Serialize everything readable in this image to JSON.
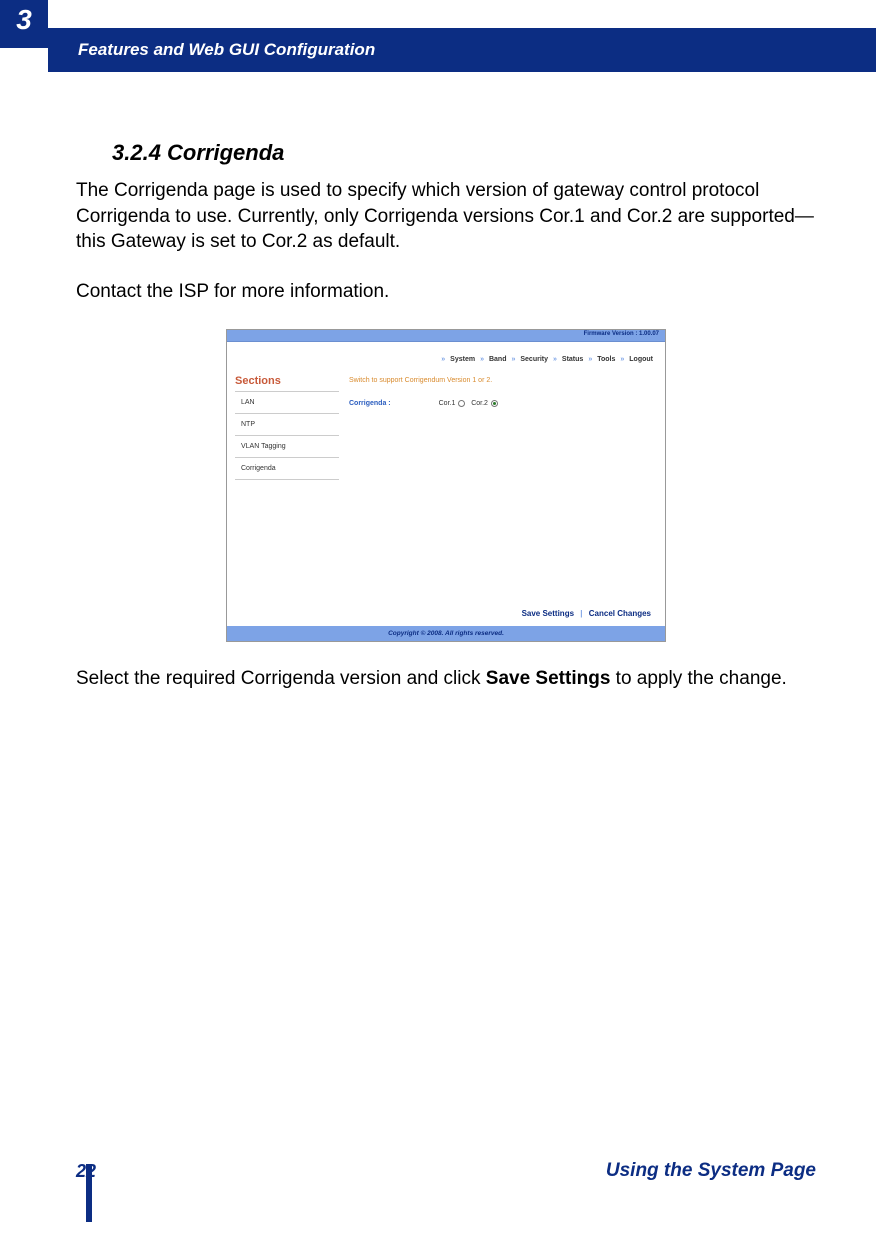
{
  "chapter_number": "3",
  "header_title": "Features and Web GUI Configuration",
  "section_heading": "3.2.4 Corrigenda",
  "para1": "The Corrigenda page is used to specify which version of gateway control proto­col Corrigenda to use. Currently, only Corrigenda versions Cor.1 and Cor.2 are supported—this Gateway is set to Cor.2 as default.",
  "para2": "Contact the ISP for more information.",
  "para3_pre": "Select the required Corrigenda version and click ",
  "para3_bold": "Save Settings",
  "para3_post": " to apply the change.",
  "screenshot": {
    "firmware": "Firmware Version : 1.00.07",
    "nav": [
      "System",
      "Band",
      "Security",
      "Status",
      "Tools",
      "Logout"
    ],
    "sections_title": "Sections",
    "sections": [
      "LAN",
      "NTP",
      "VLAN Tagging",
      "Corrigenda"
    ],
    "hint": "Switch to support Corrigendum Version 1 or 2.",
    "row_label": "Corrigenda :",
    "options": [
      {
        "label": "Cor.1",
        "selected": false
      },
      {
        "label": "Cor.2",
        "selected": true
      }
    ],
    "save_label": "Save Settings",
    "cancel_label": "Cancel Changes",
    "footer": "Copyright © 2008.  All rights reserved."
  },
  "page_number": "22",
  "footer_label": "Using the System Page",
  "colors": {
    "brand_blue": "#0c2d83",
    "light_blue": "#7da3e6",
    "orange": "#d98b2e",
    "section_red": "#c85a3a"
  }
}
